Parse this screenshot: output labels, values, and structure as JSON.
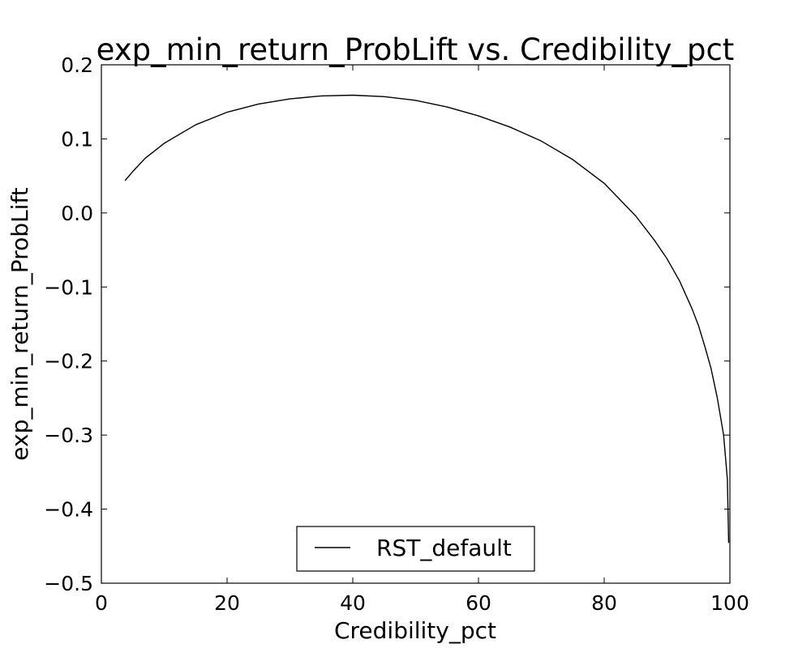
{
  "chart_data": {
    "type": "line",
    "title": "exp_min_return_ProbLift vs. Credibility_pct",
    "xlabel": "Credibility_pct",
    "ylabel": "exp_min_return_ProbLift",
    "xlim": [
      0,
      100
    ],
    "ylim": [
      -0.5,
      0.2
    ],
    "xticks": [
      0,
      20,
      40,
      60,
      80,
      100
    ],
    "xtick_labels": [
      "0",
      "20",
      "40",
      "60",
      "80",
      "100"
    ],
    "yticks": [
      -0.5,
      -0.4,
      -0.3,
      -0.2,
      -0.1,
      0.0,
      0.1,
      0.2
    ],
    "ytick_labels": [
      "−0.5",
      "−0.4",
      "−0.3",
      "−0.2",
      "−0.1",
      "0.0",
      "0.1",
      "0.2"
    ],
    "grid": false,
    "legend_position": "lower-center",
    "series": [
      {
        "name": "RST_default",
        "color": "#000000",
        "x": [
          3.8,
          5,
          7,
          10,
          15,
          20,
          25,
          30,
          35,
          40,
          45,
          50,
          55,
          60,
          65,
          70,
          75,
          80,
          85,
          88,
          90,
          92,
          94,
          95,
          96,
          97,
          98,
          98.5,
          99,
          99.3,
          99.6,
          99.8
        ],
        "y": [
          0.044,
          0.056,
          0.074,
          0.094,
          0.119,
          0.136,
          0.147,
          0.154,
          0.158,
          0.159,
          0.157,
          0.152,
          0.143,
          0.131,
          0.116,
          0.097,
          0.072,
          0.04,
          -0.004,
          -0.037,
          -0.062,
          -0.092,
          -0.13,
          -0.152,
          -0.18,
          -0.21,
          -0.25,
          -0.275,
          -0.3,
          -0.33,
          -0.36,
          -0.445
        ]
      }
    ]
  }
}
